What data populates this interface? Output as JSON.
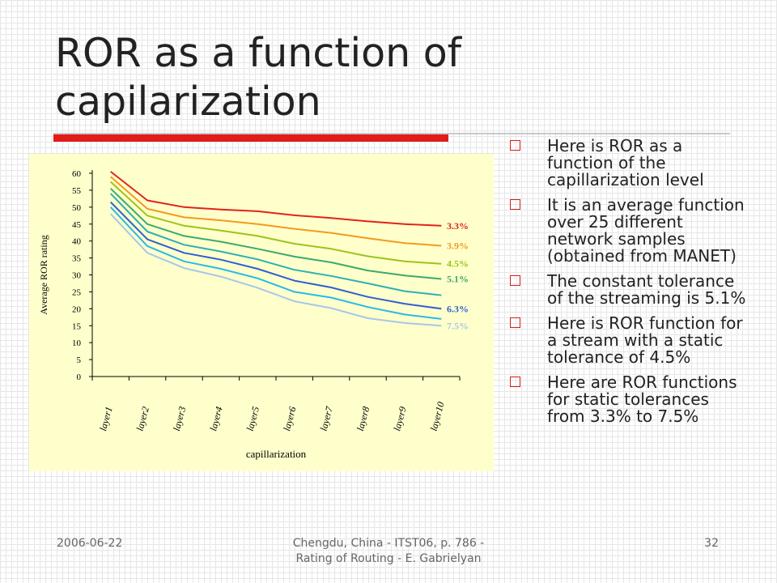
{
  "slide": {
    "title": "ROR as a function of capilarization"
  },
  "bullets": [
    "Here is ROR as a function of the capillarization level",
    "It is an average function over 25 different network samples (obtained from MANET)",
    "The constant tolerance of the streaming is 5.1%",
    "Here is ROR function for a stream with a static tolerance of 4.5%",
    "Here are ROR functions for static tolerances from 3.3% to 7.5%"
  ],
  "footer": {
    "date": "2006-06-22",
    "center_line1": "Chengdu, China - ITST06, p. 786 -",
    "center_line2": "Rating of Routing - E. Gabrielyan",
    "page": "32"
  },
  "colors": {
    "accent_bar": "#e21b1b",
    "chart_background": "#ffffcc"
  },
  "chart_data": {
    "type": "line",
    "xlabel": "capillarization",
    "ylabel": "Average ROR rating",
    "categories": [
      "layer1",
      "layer2",
      "layer3",
      "layer4",
      "layer5",
      "layer6",
      "layer7",
      "layer8",
      "layer9",
      "layer10"
    ],
    "ylim": [
      0,
      60
    ],
    "yticks": [
      0,
      5,
      10,
      15,
      20,
      25,
      30,
      35,
      40,
      45,
      50,
      55,
      60
    ],
    "grid": false,
    "legend": "none",
    "series": [
      {
        "name": "3.3%",
        "color": "#e2231a",
        "values": [
          60.5,
          52,
          50,
          49.3,
          48.8,
          47.6,
          46.8,
          45.8,
          45.0,
          44.5
        ]
      },
      {
        "name": "3.9%",
        "color": "#f39a1e",
        "values": [
          59,
          49.5,
          47,
          46.1,
          45.0,
          43.6,
          42.4,
          40.8,
          39.4,
          38.6
        ]
      },
      {
        "name": "4.5%",
        "color": "#9cc41a",
        "values": [
          57.5,
          47.5,
          44.5,
          43.1,
          41.5,
          39.2,
          37.7,
          35.5,
          34.0,
          33.3
        ]
      },
      {
        "name": "5.1%",
        "color": "#3aaa6a",
        "values": [
          55.5,
          45,
          41.5,
          39.8,
          37.7,
          35.4,
          33.7,
          31.3,
          29.8,
          28.8
        ]
      },
      {
        "name": "",
        "color": "#2cb0b4",
        "values": [
          54,
          42.8,
          38.9,
          36.9,
          34.6,
          31.5,
          29.7,
          27.5,
          25.2,
          24.0
        ]
      },
      {
        "name": "6.3%",
        "color": "#2f5fd2",
        "values": [
          51.5,
          40.5,
          36.5,
          34.5,
          31.8,
          28.3,
          26.3,
          23.5,
          21.5,
          20.0
        ]
      },
      {
        "name": "",
        "color": "#27b9ea",
        "values": [
          50,
          38.5,
          34,
          31.8,
          29,
          25,
          23.3,
          20.5,
          18.3,
          17.0
        ]
      },
      {
        "name": "7.5%",
        "color": "#a7c7e8",
        "values": [
          48,
          36.5,
          32,
          29.5,
          26.2,
          22.2,
          20.2,
          17.2,
          15.8,
          15.0
        ]
      }
    ]
  }
}
